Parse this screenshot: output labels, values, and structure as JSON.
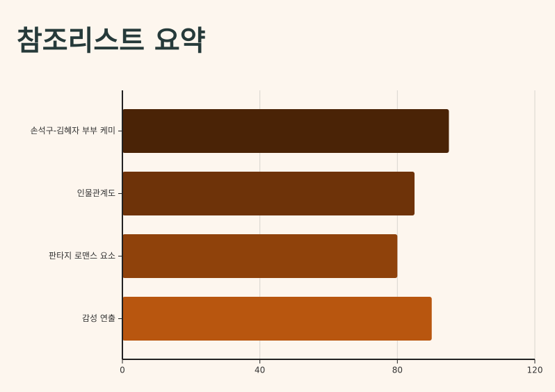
{
  "chart_data": {
    "type": "bar",
    "orientation": "horizontal",
    "title": "참조리스트 요약",
    "categories": [
      "손석구-김혜자 부부 케미",
      "인물관계도",
      "판타지 로맨스 요소",
      "감성 연출"
    ],
    "values": [
      95,
      85,
      80,
      90
    ],
    "colors": [
      "#4a2306",
      "#6e3309",
      "#8f420b",
      "#b8560f"
    ],
    "xlim": [
      0,
      120
    ],
    "xticks": [
      0,
      40,
      80,
      120
    ],
    "grid": true
  }
}
